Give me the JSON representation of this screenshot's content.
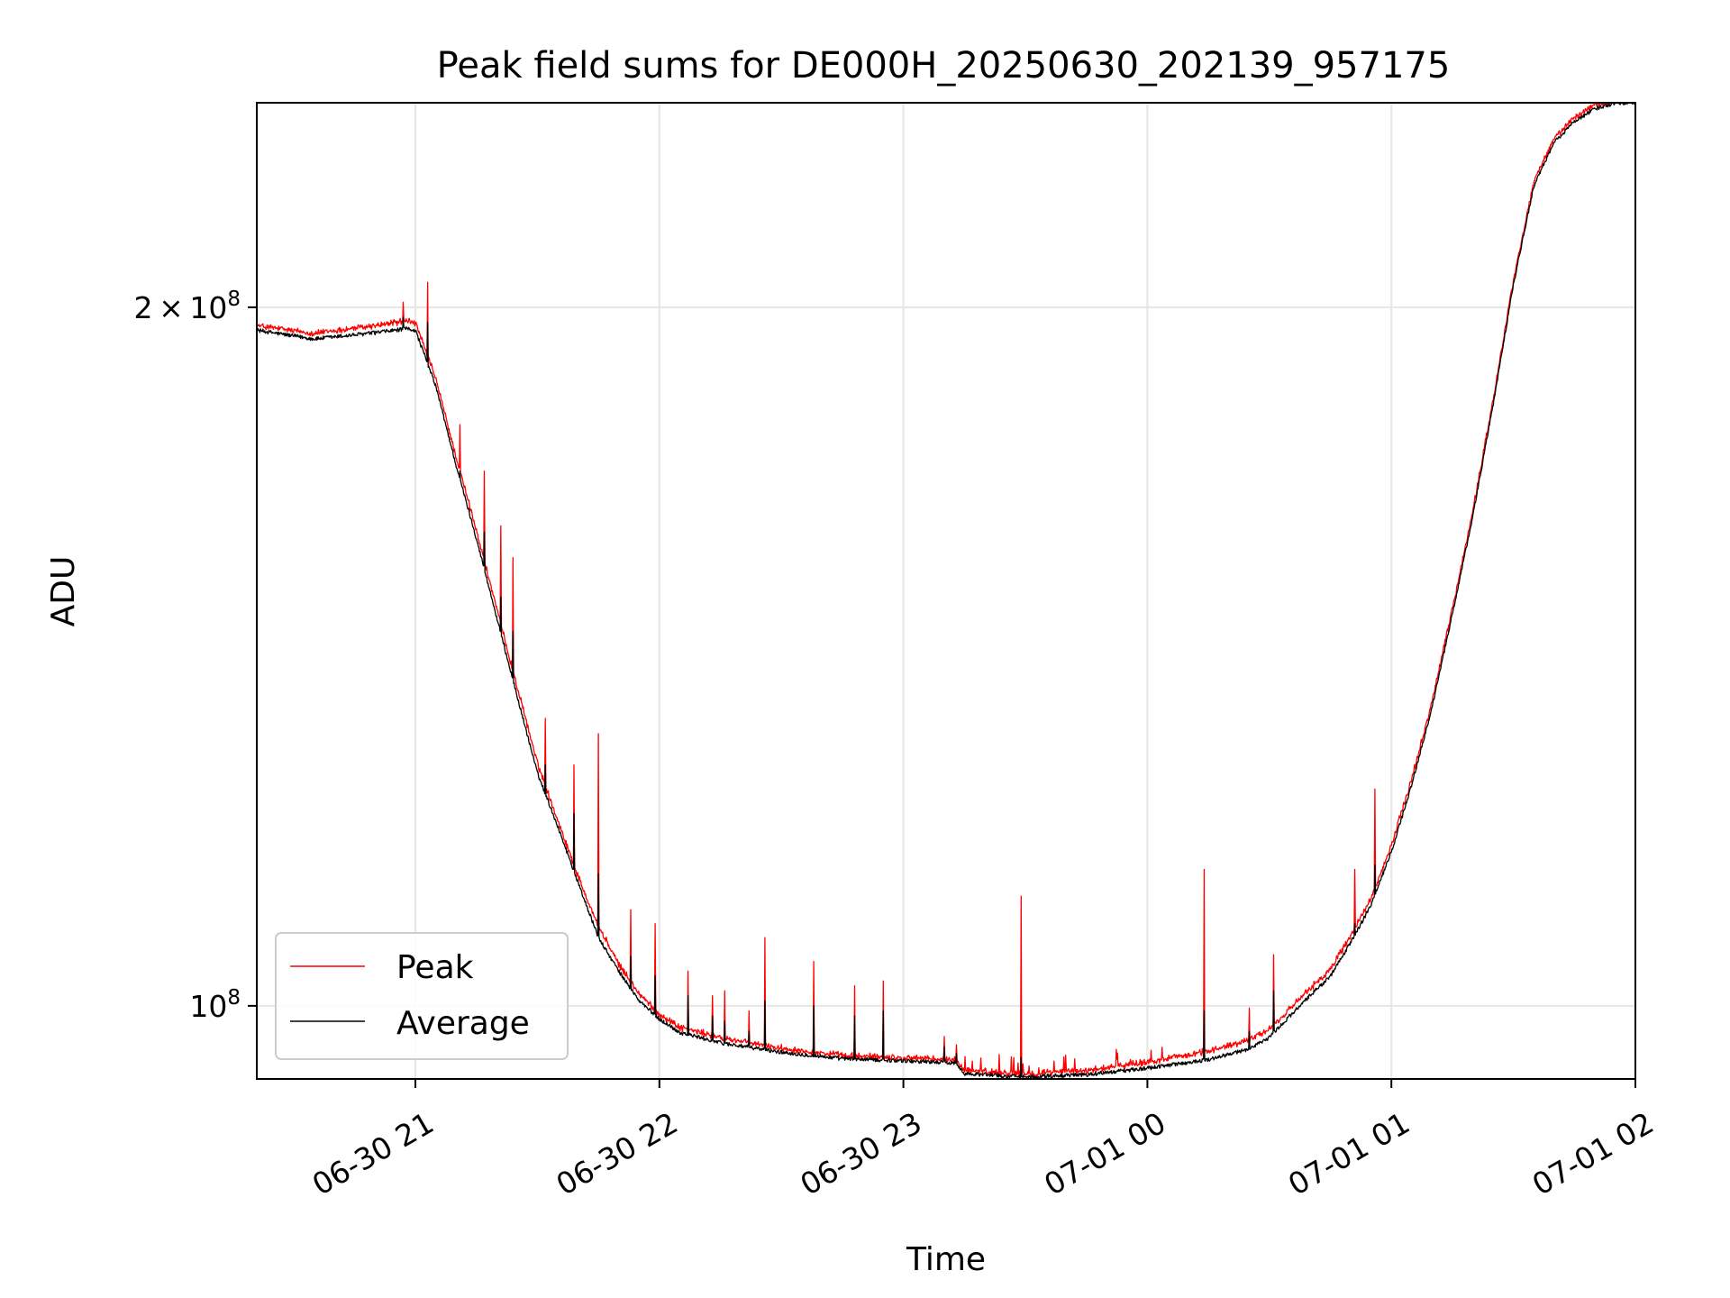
{
  "chart_data": {
    "type": "line",
    "title": "Peak field sums for DE000H_20250630_202139_957175",
    "xlabel": "Time",
    "ylabel": "ADU",
    "yscale": "log",
    "xlim": [
      "2025-06-30 20:21",
      "2025-07-01 02:00"
    ],
    "ylim": [
      93000000,
      245000000
    ],
    "x_ticks": [
      "06-30 21",
      "06-30 22",
      "06-30 23",
      "07-01 00",
      "07-01 01",
      "07-01 02"
    ],
    "y_ticks": [
      {
        "value": 200000000,
        "mantissa": "2",
        "exponent": "8"
      },
      {
        "value": 100000000,
        "mantissa": "",
        "exponent": "8"
      }
    ],
    "grid": true,
    "legend": {
      "position": "lower-left",
      "entries": [
        "Peak",
        "Average"
      ]
    },
    "colors": {
      "Peak": "#ff0000",
      "Average": "#000000",
      "grid": "#e6e6e6"
    },
    "x": [
      "2025-06-30 20:21",
      "2025-06-30 20:35",
      "2025-06-30 20:50",
      "2025-06-30 20:58",
      "2025-06-30 21:00",
      "2025-06-30 21:05",
      "2025-06-30 21:10",
      "2025-06-30 21:15",
      "2025-06-30 21:20",
      "2025-06-30 21:25",
      "2025-06-30 21:30",
      "2025-06-30 21:35",
      "2025-06-30 21:40",
      "2025-06-30 21:45",
      "2025-06-30 21:50",
      "2025-06-30 21:55",
      "2025-06-30 22:00",
      "2025-06-30 22:05",
      "2025-06-30 22:15",
      "2025-06-30 22:30",
      "2025-06-30 22:45",
      "2025-06-30 23:00",
      "2025-06-30 23:13",
      "2025-06-30 23:15",
      "2025-06-30 23:30",
      "2025-06-30 23:45",
      "2025-07-01 00:00",
      "2025-07-01 00:15",
      "2025-07-01 00:25",
      "2025-07-01 00:30",
      "2025-07-01 00:35",
      "2025-07-01 00:40",
      "2025-07-01 00:45",
      "2025-07-01 00:50",
      "2025-07-01 00:55",
      "2025-07-01 01:00",
      "2025-07-01 01:05",
      "2025-07-01 01:10",
      "2025-07-01 01:15",
      "2025-07-01 01:20",
      "2025-07-01 01:25",
      "2025-07-01 01:30",
      "2025-07-01 01:35",
      "2025-07-01 01:40",
      "2025-07-01 01:45",
      "2025-07-01 01:50",
      "2025-07-01 01:55",
      "2025-07-01 02:00"
    ],
    "series": [
      {
        "name": "Peak",
        "values": [
          196000000,
          194500000,
          196000000,
          197000000,
          196500000,
          186000000,
          172000000,
          160000000,
          148000000,
          137000000,
          127000000,
          120000000,
          113500000,
          108000000,
          104000000,
          101000000,
          99000000,
          97700000,
          96700000,
          95700000,
          95000000,
          94800000,
          94600000,
          93600000,
          93300000,
          93600000,
          94400000,
          95400000,
          96500000,
          97500000,
          99500000,
          101500000,
          103500000,
          107000000,
          111000000,
          117000000,
          125000000,
          135000000,
          148000000,
          163000000,
          182000000,
          205000000,
          226000000,
          236000000,
          241000000,
          244000000,
          245000000,
          245000000
        ]
      },
      {
        "name": "Average",
        "values": [
          195500000,
          193800000,
          195000000,
          195800000,
          195500000,
          185000000,
          171000000,
          159000000,
          147000000,
          136000000,
          126000000,
          119500000,
          113000000,
          107000000,
          103500000,
          100500000,
          98700000,
          97400000,
          96400000,
          95500000,
          94900000,
          94700000,
          94500000,
          93500000,
          93200000,
          93400000,
          94000000,
          94800000,
          95800000,
          96900000,
          99000000,
          101000000,
          103000000,
          106500000,
          110500000,
          116500000,
          124500000,
          134500000,
          147500000,
          162500000,
          181500000,
          204500000,
          225500000,
          235500000,
          240500000,
          243500000,
          245000000,
          245000000
        ]
      }
    ],
    "spikes": [
      {
        "x": "2025-06-30 20:57",
        "peak": 201000000,
        "average": 198000000
      },
      {
        "x": "2025-06-30 21:03",
        "peak": 205000000,
        "average": 197000000
      },
      {
        "x": "2025-06-30 21:11",
        "peak": 178000000,
        "average": 170000000
      },
      {
        "x": "2025-06-30 21:17",
        "peak": 170000000,
        "average": 160000000
      },
      {
        "x": "2025-06-30 21:21",
        "peak": 161000000,
        "average": 150000000
      },
      {
        "x": "2025-06-30 21:24",
        "peak": 156000000,
        "average": 145000000
      },
      {
        "x": "2025-06-30 21:32",
        "peak": 133000000,
        "average": 127000000
      },
      {
        "x": "2025-06-30 21:39",
        "peak": 127000000,
        "average": 121000000
      },
      {
        "x": "2025-06-30 21:45",
        "peak": 131000000,
        "average": 114000000
      },
      {
        "x": "2025-06-30 21:53",
        "peak": 110000000,
        "average": 105000000
      },
      {
        "x": "2025-06-30 21:59",
        "peak": 108500000,
        "average": 103000000
      },
      {
        "x": "2025-06-30 22:07",
        "peak": 103500000,
        "average": 101000000
      },
      {
        "x": "2025-06-30 22:13",
        "peak": 101000000,
        "average": 99000000
      },
      {
        "x": "2025-06-30 22:16",
        "peak": 101500000,
        "average": 98500000
      },
      {
        "x": "2025-06-30 22:22",
        "peak": 99500000,
        "average": 97500000
      },
      {
        "x": "2025-06-30 22:26",
        "peak": 107000000,
        "average": 100500000
      },
      {
        "x": "2025-06-30 22:38",
        "peak": 104500000,
        "average": 100000000
      },
      {
        "x": "2025-06-30 22:48",
        "peak": 102000000,
        "average": 99000000
      },
      {
        "x": "2025-06-30 22:55",
        "peak": 102500000,
        "average": 99500000
      },
      {
        "x": "2025-06-30 23:10",
        "peak": 97000000,
        "average": 96000000
      },
      {
        "x": "2025-06-30 23:13",
        "peak": 96200000,
        "average": 95400000
      },
      {
        "x": "2025-06-30 23:29",
        "peak": 111500000,
        "average": 95000000
      },
      {
        "x": "2025-07-01 00:14",
        "peak": 114500000,
        "average": 99500000
      },
      {
        "x": "2025-07-01 00:25",
        "peak": 99800000,
        "average": 97500000
      },
      {
        "x": "2025-07-01 00:31",
        "peak": 105200000,
        "average": 101500000
      },
      {
        "x": "2025-07-01 00:51",
        "peak": 114500000,
        "average": 108500000
      },
      {
        "x": "2025-07-01 00:56",
        "peak": 124000000,
        "average": 115000000
      }
    ]
  }
}
